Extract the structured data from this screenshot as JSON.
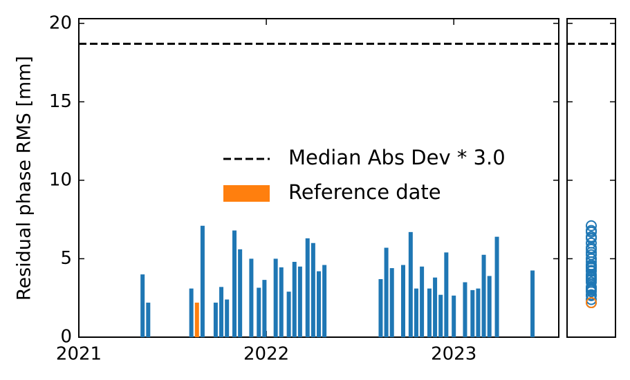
{
  "chart_data": {
    "type": "bar",
    "ylabel": "Residual phase RMS [mm]",
    "x": [
      2021.34,
      2021.37,
      2021.6,
      2021.66,
      2021.73,
      2021.76,
      2021.79,
      2021.83,
      2021.86,
      2021.92,
      2021.96,
      2021.99,
      2022.05,
      2022.08,
      2022.12,
      2022.15,
      2022.18,
      2022.22,
      2022.25,
      2022.28,
      2022.31,
      2022.61,
      2022.64,
      2022.67,
      2022.73,
      2022.77,
      2022.8,
      2022.83,
      2022.87,
      2022.9,
      2022.93,
      2022.96,
      2023.0,
      2023.06,
      2023.1,
      2023.13,
      2023.16,
      2023.19,
      2023.23,
      2023.42
    ],
    "values": [
      4.0,
      2.2,
      3.1,
      7.1,
      2.2,
      3.2,
      2.4,
      6.8,
      5.6,
      5.0,
      3.15,
      3.65,
      5.0,
      4.45,
      2.9,
      4.8,
      4.5,
      6.3,
      6.0,
      4.2,
      4.6,
      3.7,
      5.7,
      4.4,
      4.6,
      6.7,
      3.1,
      4.5,
      3.1,
      3.8,
      2.7,
      5.4,
      2.65,
      3.5,
      3.0,
      3.1,
      5.25,
      3.9,
      6.4,
      4.25
    ],
    "color": "#1f77b4",
    "reference": {
      "name": "Reference date",
      "color": "#ff7f0e",
      "x": 2021.63,
      "value": 2.2
    },
    "threshold": {
      "name": "Median Abs Dev * 3.0",
      "value": 18.7
    },
    "xlim": [
      2021.0,
      2023.56
    ],
    "xticks": [
      2021,
      2022,
      2023
    ],
    "ylim": [
      0,
      20.3
    ],
    "yticks": [
      0,
      5,
      10,
      15,
      20
    ]
  }
}
